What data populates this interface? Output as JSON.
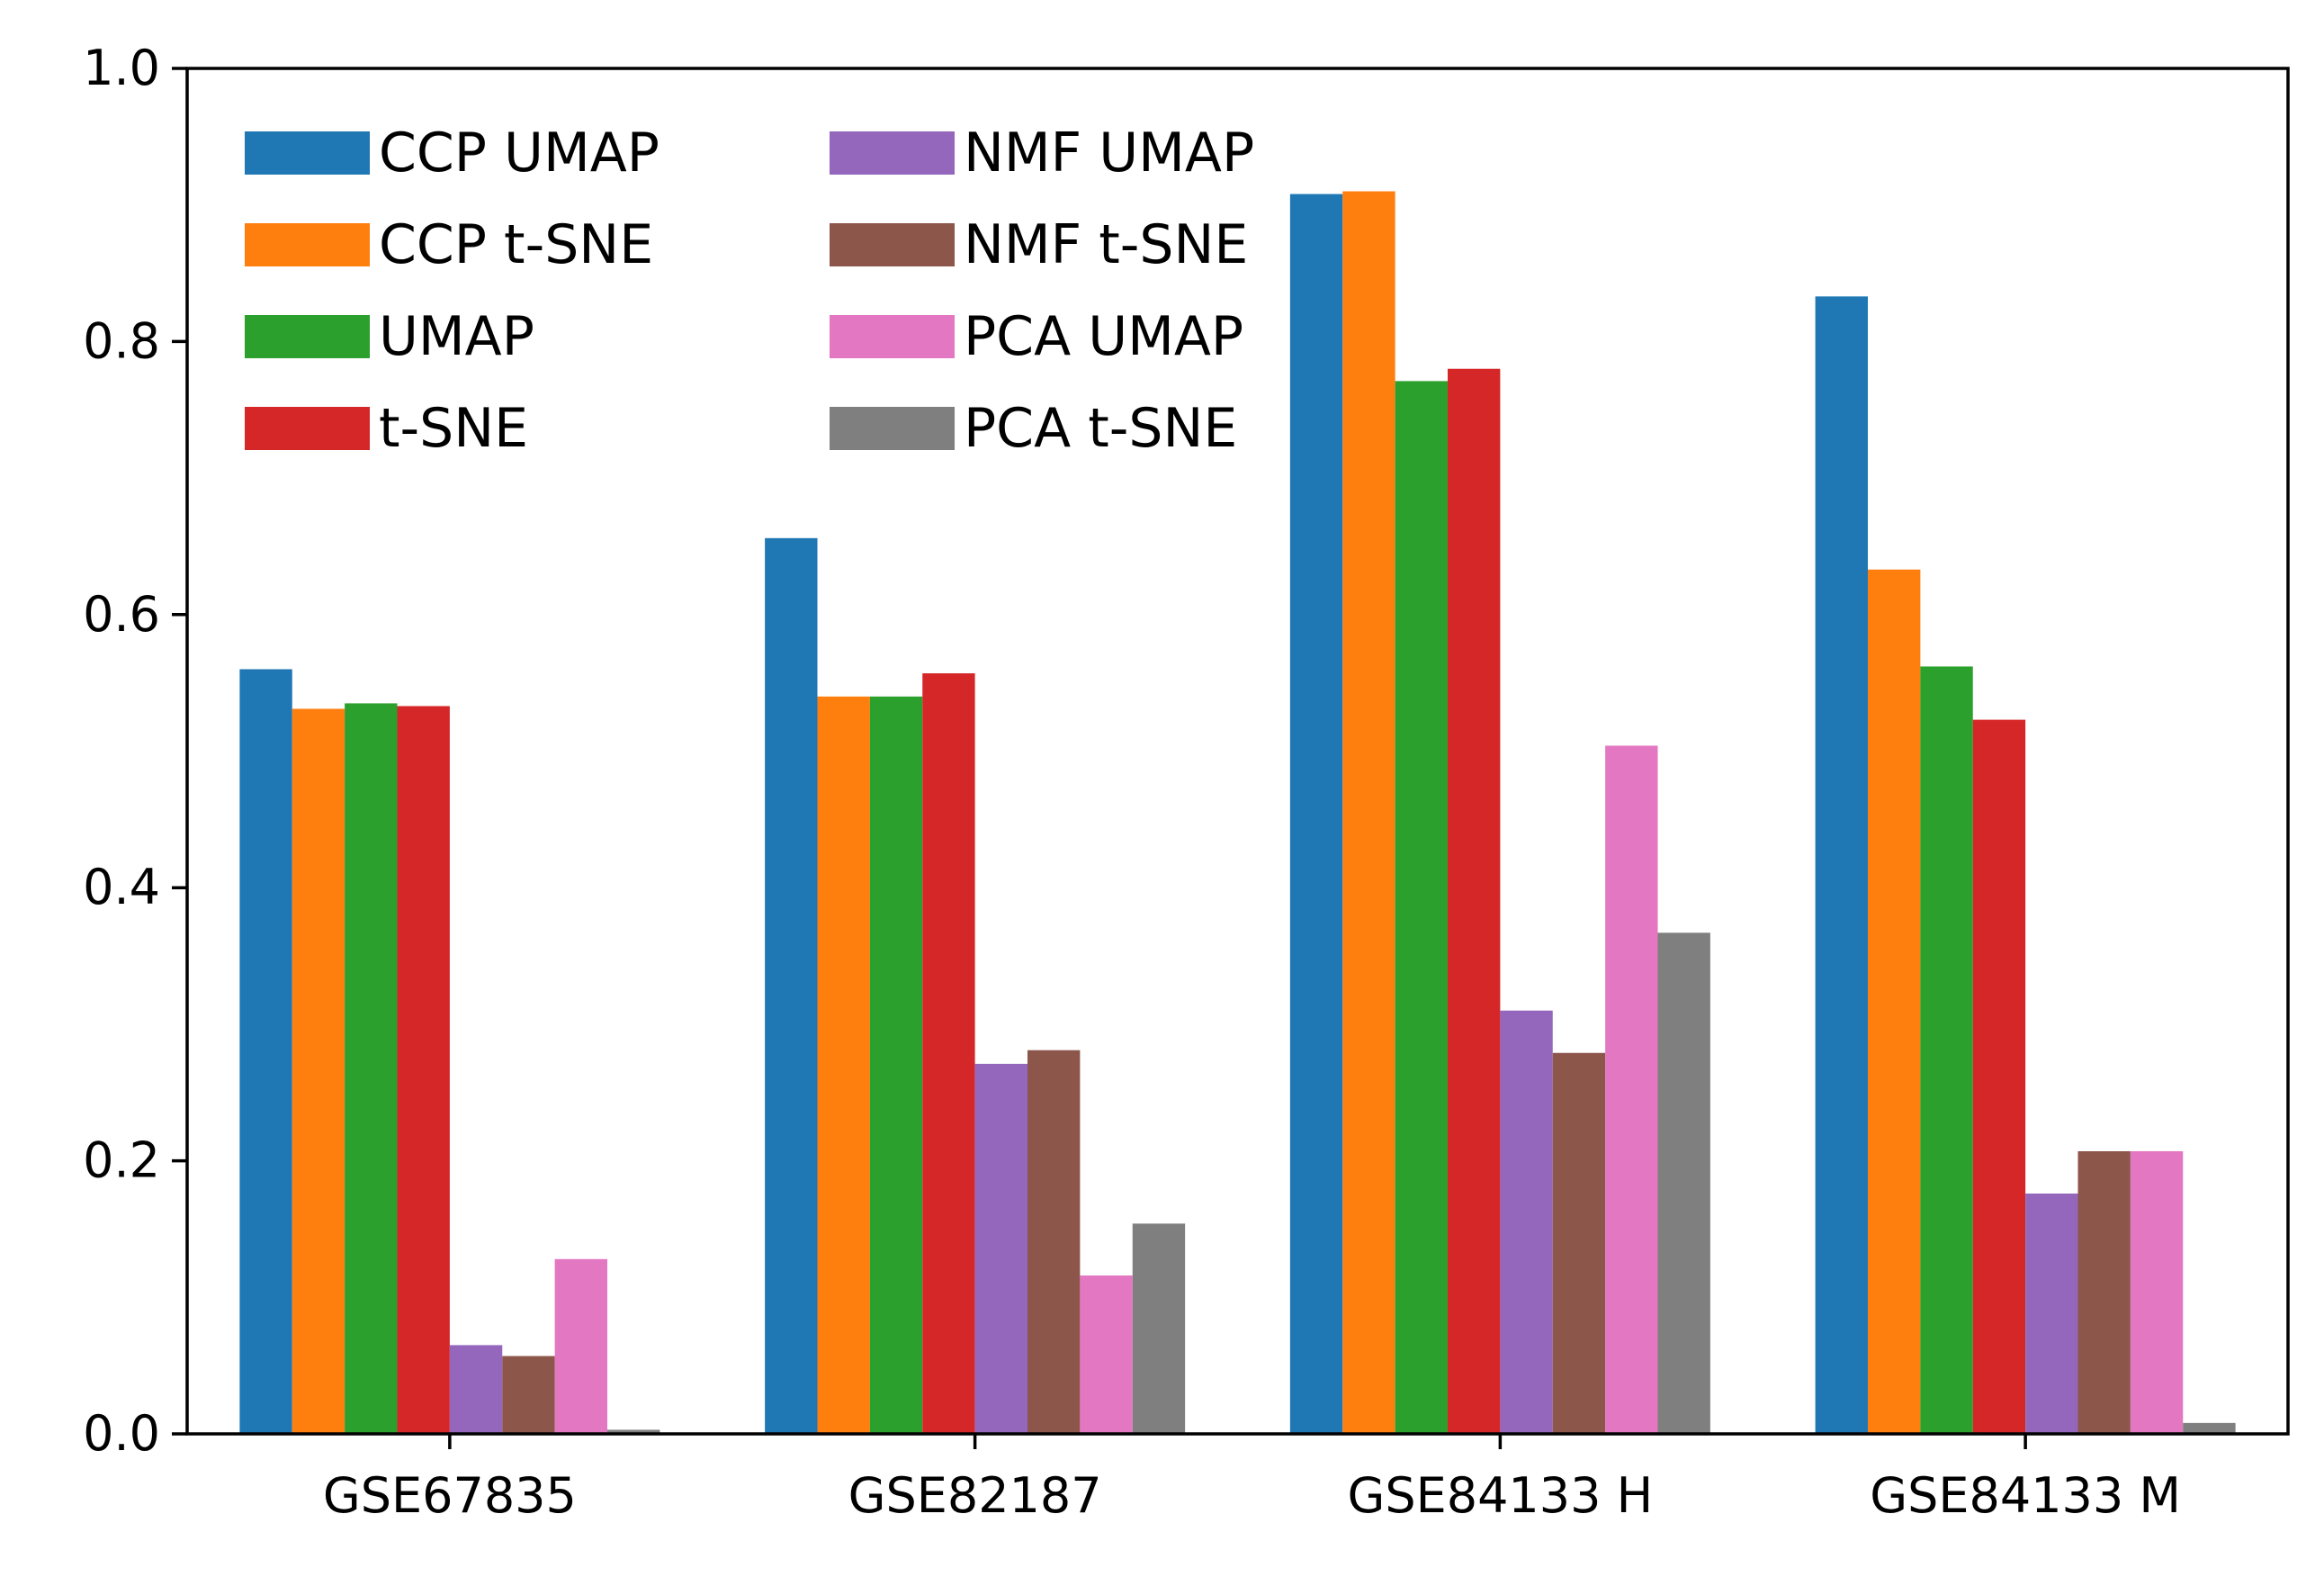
{
  "chart_data": {
    "type": "bar",
    "title": "",
    "xlabel": "",
    "ylabel": "",
    "ylim": [
      0,
      1.0
    ],
    "yticks": [
      "0.0",
      "0.2",
      "0.4",
      "0.6",
      "0.8",
      "1.0"
    ],
    "grid": false,
    "legend_position": "top-left",
    "legend_columns": 2,
    "categories": [
      "GSE67835",
      "GSE82187",
      "GSE84133 H",
      "GSE84133 M"
    ],
    "series": [
      {
        "name": "CCP UMAP",
        "color": "#1f77b4",
        "values": [
          0.56,
          0.656,
          0.908,
          0.833
        ]
      },
      {
        "name": "CCP t-SNE",
        "color": "#ff7f0e",
        "values": [
          0.531,
          0.54,
          0.91,
          0.633
        ]
      },
      {
        "name": "UMAP",
        "color": "#2ca02c",
        "values": [
          0.535,
          0.54,
          0.771,
          0.562
        ]
      },
      {
        "name": "t-SNE",
        "color": "#d62728",
        "values": [
          0.533,
          0.557,
          0.78,
          0.523
        ]
      },
      {
        "name": "NMF UMAP",
        "color": "#9467bd",
        "values": [
          0.065,
          0.271,
          0.31,
          0.176
        ]
      },
      {
        "name": "NMF t-SNE",
        "color": "#8c564b",
        "values": [
          0.057,
          0.281,
          0.279,
          0.207
        ]
      },
      {
        "name": "PCA UMAP",
        "color": "#e377c2",
        "values": [
          0.128,
          0.116,
          0.504,
          0.207
        ]
      },
      {
        "name": "PCA t-SNE",
        "color": "#7f7f7f",
        "values": [
          0.003,
          0.154,
          0.367,
          0.008
        ]
      }
    ]
  }
}
